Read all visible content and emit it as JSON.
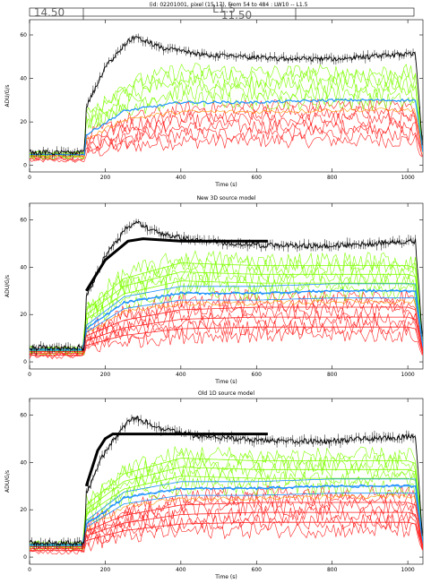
{
  "header": {
    "line1": "(id: 02201001, pixel (15,17), From 54 to 484 : LW10 -- L1.5",
    "mark_left": "14.50",
    "mark_mid": "L1.5",
    "mark_right": "11.50"
  },
  "colors": {
    "data": "#000000",
    "model_green": "#7fff00",
    "model_red": "#ff2020",
    "model_blue": "#1e90ff",
    "model_orange": "#ff9900",
    "model_cyan": "#00bfff"
  },
  "chart_data": [
    {
      "type": "line",
      "title": "",
      "xlabel": "Time (s)",
      "ylabel": "ADU/G/s",
      "xlim": [
        0,
        1040
      ],
      "ylim": [
        -3,
        67
      ],
      "xticks": [
        "0",
        "200",
        "400",
        "600",
        "800",
        "1000"
      ],
      "yticks": [
        "0",
        "20",
        "40",
        "60"
      ],
      "grid": false,
      "series_summary": {
        "data_black": {
          "x": [
            0,
            145,
            150,
            200,
            260,
            280,
            350,
            450,
            550,
            650,
            800,
            900,
            1000,
            1020,
            1030,
            1040
          ],
          "y": [
            6,
            6,
            27,
            45,
            57,
            59,
            54,
            51,
            50,
            49,
            49,
            50,
            51,
            51,
            30,
            6
          ]
        },
        "green": {
          "x": [
            0,
            145,
            150,
            250,
            400,
            600,
            800,
            1000,
            1020,
            1040
          ],
          "y": [
            5,
            5,
            20,
            32,
            38,
            37,
            37,
            37,
            36,
            6
          ]
        },
        "blue": {
          "x": [
            0,
            145,
            150,
            250,
            400,
            600,
            800,
            1000,
            1020,
            1040
          ],
          "y": [
            5,
            5,
            14,
            25,
            29,
            29,
            30,
            30,
            30,
            6
          ]
        },
        "red": {
          "x": [
            0,
            145,
            150,
            250,
            400,
            600,
            800,
            1000,
            1020,
            1040
          ],
          "y": [
            4,
            4,
            10,
            16,
            20,
            21,
            21,
            21,
            20,
            4
          ]
        }
      }
    },
    {
      "type": "line",
      "title": "New 3D source model",
      "xlabel": "Time (s)",
      "ylabel": "ADU/G/s",
      "xlim": [
        0,
        1040
      ],
      "ylim": [
        -3,
        67
      ],
      "xticks": [
        "0",
        "200",
        "400",
        "600",
        "800",
        "1000"
      ],
      "yticks": [
        "0",
        "20",
        "40",
        "60"
      ],
      "grid": false,
      "model_line": {
        "x": [
          150,
          200,
          260,
          300,
          400,
          500,
          630
        ],
        "y": [
          30,
          43,
          51,
          52,
          51,
          51,
          51
        ]
      }
    },
    {
      "type": "line",
      "title": "Old 1D source model",
      "xlabel": "Time (s)",
      "ylabel": "ADU/G/s",
      "xlim": [
        0,
        1040
      ],
      "ylim": [
        -3,
        67
      ],
      "xticks": [
        "0",
        "200",
        "400",
        "600",
        "800",
        "1000"
      ],
      "yticks": [
        "0",
        "20",
        "40",
        "60"
      ],
      "grid": false,
      "model_line": {
        "x": [
          150,
          180,
          200,
          220,
          300,
          400,
          500,
          630
        ],
        "y": [
          30,
          45,
          50,
          52,
          52,
          52,
          52,
          52
        ]
      }
    }
  ]
}
